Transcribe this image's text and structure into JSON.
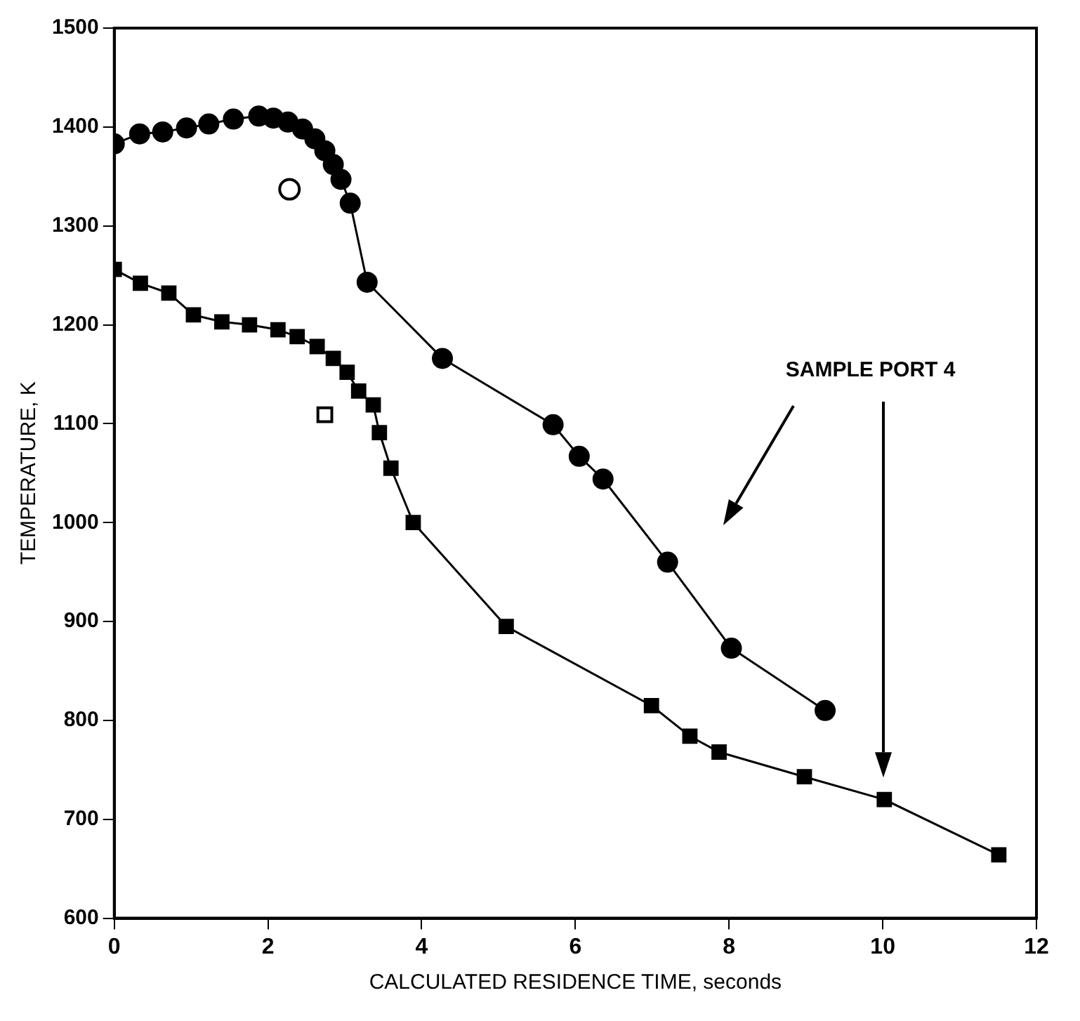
{
  "chart_data": {
    "type": "line",
    "xlabel": "CALCULATED RESIDENCE TIME, seconds",
    "ylabel": "TEMPERATURE, K",
    "xlim": [
      0,
      12
    ],
    "xticks": [
      0,
      2,
      4,
      6,
      8,
      10,
      12
    ],
    "ylim": [
      600,
      1500
    ],
    "yticks": [
      600,
      700,
      800,
      900,
      1000,
      1100,
      1200,
      1300,
      1400,
      1500
    ],
    "grid": false,
    "legend": false,
    "annotations": [
      "SAMPLE PORT 4"
    ],
    "series": [
      {
        "type": "line",
        "marker": "circle",
        "color": "#000000",
        "x": [
          0,
          0.33,
          0.63,
          0.94,
          1.23,
          1.55,
          1.88,
          2.07,
          2.26,
          2.45,
          2.61,
          2.74,
          2.85,
          2.95,
          3.07,
          3.29,
          4.27,
          5.71,
          6.05,
          6.36,
          7.2,
          8.03,
          9.25
        ],
        "values": [
          1383,
          1393,
          1395,
          1399,
          1403,
          1408,
          1411,
          1409,
          1405,
          1398,
          1388,
          1376,
          1362,
          1347,
          1323,
          1243,
          1166,
          1099,
          1067,
          1044,
          960,
          873,
          810
        ]
      },
      {
        "type": "line",
        "marker": "square",
        "color": "#000000",
        "x": [
          0,
          0.34,
          0.71,
          1.03,
          1.4,
          1.76,
          2.13,
          2.38,
          2.64,
          2.85,
          3.03,
          3.18,
          3.37,
          3.45,
          3.6,
          3.89,
          5.1,
          6.99,
          7.49,
          7.87,
          8.98,
          10.02,
          11.51
        ],
        "values": [
          1256,
          1242,
          1232,
          1210,
          1203,
          1200,
          1195,
          1188,
          1178,
          1166,
          1152,
          1133,
          1119,
          1091,
          1055,
          1000,
          895,
          815,
          784,
          768,
          743,
          720,
          664
        ]
      },
      {
        "type": "scatter",
        "marker": "circle",
        "color": "#000000",
        "x": [
          2.28
        ],
        "values": [
          1337
        ]
      },
      {
        "type": "scatter",
        "marker": "square",
        "color": "#000000",
        "x": [
          2.74
        ],
        "values": [
          1109
        ]
      }
    ]
  }
}
